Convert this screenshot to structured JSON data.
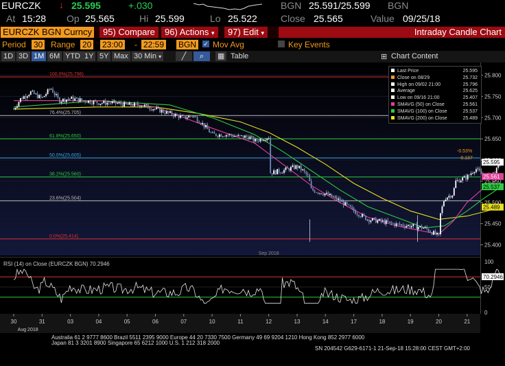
{
  "header": {
    "ticker": "EURCZK",
    "price": "25.595",
    "change": "+.030",
    "bgn_label1": "BGN",
    "bid_ask": "25.591/25.599",
    "bgn_label2": "BGN",
    "at_label": "At",
    "time": "15:28",
    "op_label": "Op",
    "open": "25.565",
    "hi_label": "Hi",
    "high": "25.599",
    "lo_label": "Lo",
    "low": "25.522",
    "close_label": "Close",
    "close": "25.565",
    "value_label": "Value",
    "value_date": "09/25/18"
  },
  "toolbar": {
    "security": "EURCZK BGN Curncy",
    "compare_num": "95)",
    "compare": "Compare",
    "actions_num": "96)",
    "actions": "Actions",
    "edit_num": "97)",
    "edit": "Edit",
    "title": "Intraday Candle Chart"
  },
  "controls": {
    "period_label": "Period",
    "period_value": "30",
    "range_label": "Range",
    "range_value": "20",
    "start_time": "23:00",
    "dash": "-",
    "end_time": "22:59",
    "source": "BGN",
    "mov_avg": "Mov Avg",
    "key_events": "Key Events"
  },
  "ranges": {
    "buttons": [
      "1D",
      "3D",
      "1M",
      "6M",
      "YTD",
      "1Y",
      "5Y",
      "Max"
    ],
    "selected": "1M",
    "interval": "30 Min",
    "table": "Table",
    "chart_content": "Chart Content"
  },
  "legend": {
    "items": [
      {
        "label": "Last Price",
        "value": "25.595",
        "color": "#ffffff"
      },
      {
        "label": "Close on 08/29",
        "value": "25.732",
        "color": "#f39a1e"
      },
      {
        "label": "High on 09/02 21:00",
        "value": "25.796",
        "color": "#ffffff"
      },
      {
        "label": "Average",
        "value": "25.625",
        "color": "#ffffff"
      },
      {
        "label": "Low on 09/16 21:00",
        "value": "25.407",
        "color": "#ffffff"
      },
      {
        "label": "SMAVG (50)  on Close",
        "value": "25.561",
        "color": "#e0409a"
      },
      {
        "label": "SMAVG (100)  on Close",
        "value": "25.537",
        "color": "#2ecc40"
      },
      {
        "label": "SMAVG (200)  on Close",
        "value": "25.489",
        "color": "#e8e020"
      }
    ]
  },
  "chart_data": {
    "type": "candlestick",
    "ylim": [
      25.375,
      25.83
    ],
    "yticks": [
      "25.800",
      "25.750",
      "25.700",
      "25.650",
      "25.600",
      "25.550",
      "25.500",
      "25.450",
      "25.400"
    ],
    "fib_levels": [
      {
        "label": "100.0%(25.796)",
        "value": 25.796,
        "color": "#e03030"
      },
      {
        "label": "76.4%(25.705)",
        "value": 25.705,
        "color": "#bbbbbb"
      },
      {
        "label": "61.8%(25.650)",
        "value": 25.65,
        "color": "#2ecc40"
      },
      {
        "label": "50.0%(25.605)",
        "value": 25.605,
        "color": "#38a8e0"
      },
      {
        "label": "38.2%(25.560)",
        "value": 25.56,
        "color": "#2ecc40"
      },
      {
        "label": "23.6%(25.504)",
        "value": 25.504,
        "color": "#bbbbbb"
      },
      {
        "label": "0.0%(25.414)",
        "value": 25.414,
        "color": "#e03030"
      }
    ],
    "annotations": [
      "-0.53%",
      "-0.137"
    ],
    "right_labels": [
      {
        "text": "25.595",
        "value": 25.595,
        "bg": "#ffffff",
        "fg": "#000000"
      },
      {
        "text": "25.561",
        "value": 25.561,
        "bg": "#e0409a",
        "fg": "#ffffff"
      },
      {
        "text": "25.537",
        "value": 25.537,
        "bg": "#2ecc40",
        "fg": "#000000"
      },
      {
        "text": "25.489",
        "value": 25.489,
        "bg": "#e8e020",
        "fg": "#000000"
      }
    ],
    "x_days": [
      "30",
      "31",
      "03",
      "04",
      "05",
      "06",
      "07",
      "10",
      "11",
      "12",
      "13",
      "14",
      "17",
      "18",
      "19",
      "20",
      "21"
    ],
    "x_months": [
      "Aug 2018",
      "Sep 2018"
    ],
    "price_path": [
      [
        0,
        25.72
      ],
      [
        0.25,
        25.745
      ],
      [
        0.6,
        25.76
      ],
      [
        1,
        25.745
      ],
      [
        1.3,
        25.77
      ],
      [
        1.6,
        25.74
      ],
      [
        2,
        25.745
      ],
      [
        2.5,
        25.74
      ],
      [
        3,
        25.735
      ],
      [
        3.5,
        25.735
      ],
      [
        4,
        25.73
      ],
      [
        4.5,
        25.73
      ],
      [
        5,
        25.72
      ],
      [
        5.5,
        25.71
      ],
      [
        6,
        25.7
      ],
      [
        6.3,
        25.705
      ],
      [
        6.6,
        25.69
      ],
      [
        7,
        25.66
      ],
      [
        7.5,
        25.66
      ],
      [
        8,
        25.655
      ],
      [
        8.3,
        25.655
      ],
      [
        8.5,
        25.645
      ],
      [
        9,
        25.655
      ],
      [
        9.05,
        25.57
      ],
      [
        9.5,
        25.575
      ],
      [
        10,
        25.585
      ],
      [
        10.2,
        25.575
      ],
      [
        10.4,
        25.56
      ],
      [
        10.5,
        25.53
      ],
      [
        11,
        25.52
      ],
      [
        11.5,
        25.505
      ],
      [
        12,
        25.48
      ],
      [
        12.5,
        25.46
      ],
      [
        13,
        25.455
      ],
      [
        13.5,
        25.448
      ],
      [
        14,
        25.445
      ],
      [
        14.5,
        25.44
      ],
      [
        15,
        25.42
      ],
      [
        15.05,
        25.47
      ],
      [
        15.2,
        25.51
      ],
      [
        15.5,
        25.52
      ],
      [
        15.6,
        25.55
      ],
      [
        16,
        25.56
      ],
      [
        16.3,
        25.58
      ],
      [
        16.6,
        25.56
      ],
      [
        17,
        25.57
      ],
      [
        17.2,
        25.6
      ]
    ],
    "sma50": [
      [
        0,
        25.74
      ],
      [
        3,
        25.74
      ],
      [
        5,
        25.725
      ],
      [
        7,
        25.675
      ],
      [
        8.5,
        25.64
      ],
      [
        9.5,
        25.59
      ],
      [
        10.5,
        25.54
      ],
      [
        11.5,
        25.5
      ],
      [
        12.5,
        25.465
      ],
      [
        13.5,
        25.445
      ],
      [
        15,
        25.425
      ],
      [
        15.5,
        25.455
      ],
      [
        16,
        25.5
      ],
      [
        16.6,
        25.535
      ],
      [
        17.2,
        25.56
      ]
    ],
    "sma100": [
      [
        0,
        25.725
      ],
      [
        3,
        25.74
      ],
      [
        5.5,
        25.73
      ],
      [
        7,
        25.7
      ],
      [
        8.5,
        25.66
      ],
      [
        9.5,
        25.62
      ],
      [
        10.5,
        25.575
      ],
      [
        11.5,
        25.53
      ],
      [
        12.5,
        25.49
      ],
      [
        13.5,
        25.465
      ],
      [
        14.5,
        25.44
      ],
      [
        15.2,
        25.445
      ],
      [
        16,
        25.48
      ],
      [
        16.6,
        25.51
      ],
      [
        17.2,
        25.537
      ]
    ],
    "sma200": [
      [
        0,
        25.72
      ],
      [
        3,
        25.725
      ],
      [
        5,
        25.725
      ],
      [
        6.5,
        25.71
      ],
      [
        8,
        25.69
      ],
      [
        9,
        25.665
      ],
      [
        10,
        25.63
      ],
      [
        11,
        25.59
      ],
      [
        12,
        25.545
      ],
      [
        13,
        25.51
      ],
      [
        14,
        25.48
      ],
      [
        15,
        25.46
      ],
      [
        16,
        25.468
      ],
      [
        16.6,
        25.478
      ],
      [
        17.2,
        25.489
      ]
    ],
    "rsi": {
      "label": "RSI (14)  on Close (EURCZK BGN) 70.2946",
      "value_label": "70.2946",
      "ylim": [
        0,
        100
      ],
      "ticks": [
        "100",
        "50",
        "0"
      ],
      "overbought": 70,
      "oversold": 30
    }
  },
  "footer": {
    "line1": "Australia 61 2 9777 8600 Brazil 5511 2395 9000 Europe 44 20 7330 7500 Germany 49 69 9204 1210 Hong Kong 852 2977 6000",
    "line2": "Japan 81 3 3201 8900        Singapore 65 6212 1000        U.S. 1 212 318 2000",
    "line3": "SN 204542 G629-6171-1 21-Sep-18 15:28:00 CEST GMT+2:00"
  }
}
